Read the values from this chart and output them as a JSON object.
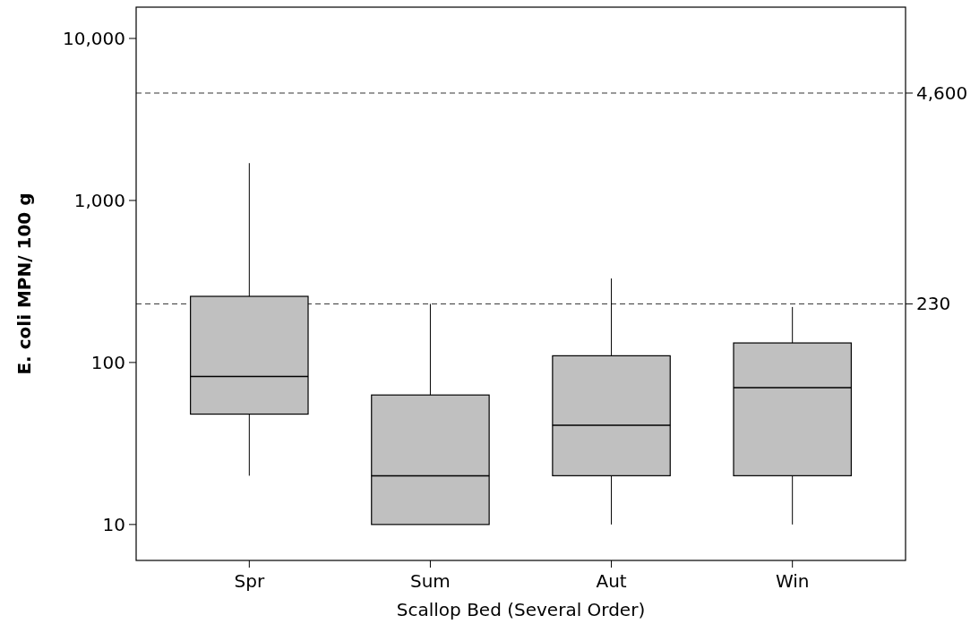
{
  "chart_data": {
    "type": "box",
    "xlabel": "Scallop Bed (Several Order)",
    "ylabel": "E. coli MPN/ 100 g",
    "categories": [
      "Spr",
      "Sum",
      "Aut",
      "Win"
    ],
    "color": "#c0c0c0",
    "boxes": [
      {
        "low": 20,
        "q1": 48,
        "median": 82,
        "q3": 256,
        "high": 1700
      },
      {
        "low": 10,
        "q1": 10,
        "median": 20,
        "q3": 63,
        "high": 230
      },
      {
        "low": 10,
        "q1": 20,
        "median": 41,
        "q3": 110,
        "high": 330
      },
      {
        "low": 10,
        "q1": 20,
        "median": 70,
        "q3": 132,
        "high": 220
      }
    ],
    "log": true,
    "ylim": [
      6,
      15600
    ],
    "yticks": [
      {
        "value": 10,
        "label": "10"
      },
      {
        "value": 100,
        "label": "100"
      },
      {
        "value": 1000,
        "label": "1,000"
      },
      {
        "value": 10000,
        "label": "10,000"
      }
    ],
    "ref_lines": [
      {
        "axis": "y",
        "value": 4600,
        "label": "4,600",
        "line_style": "dashed"
      },
      {
        "axis": "y",
        "value": 230,
        "label": "230",
        "line_style": "dashed"
      }
    ],
    "grid": false
  }
}
